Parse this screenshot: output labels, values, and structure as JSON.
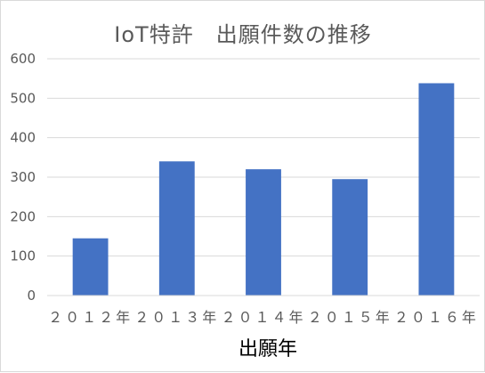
{
  "chart_data": {
    "type": "bar",
    "title": "IoT特許　出願件数の推移",
    "xlabel": "出願年",
    "ylabel": "",
    "categories": [
      "２０１２年",
      "２０１３年",
      "２０１４年",
      "２０１５年",
      "２０１６年"
    ],
    "values": [
      145,
      340,
      320,
      295,
      538
    ],
    "ylim": [
      0,
      600
    ],
    "yticks": [
      0,
      100,
      200,
      300,
      400,
      500,
      600
    ],
    "grid": true,
    "legend": "none",
    "bar_color": "#4472c4"
  }
}
